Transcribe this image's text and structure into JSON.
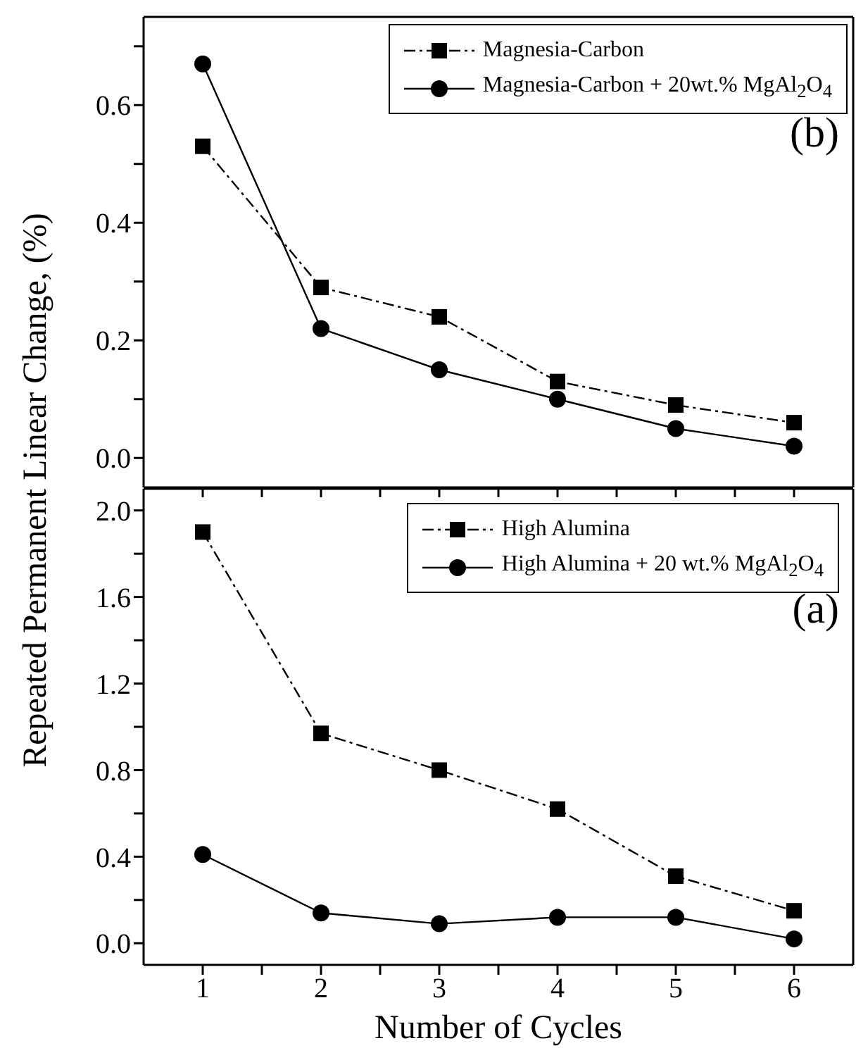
{
  "chart_data": [
    {
      "type": "line",
      "annotations": [
        "(b)"
      ],
      "x": [
        1,
        2,
        3,
        4,
        5,
        6
      ],
      "xlim": [
        0.5,
        6.5
      ],
      "xticks": [
        {
          "value": 1,
          "label": null
        },
        {
          "value": 1.5,
          "label": null
        },
        {
          "value": 2,
          "label": null
        },
        {
          "value": 2.5,
          "label": null
        },
        {
          "value": 3,
          "label": null
        },
        {
          "value": 3.5,
          "label": null
        },
        {
          "value": 4,
          "label": null
        },
        {
          "value": 4.5,
          "label": null
        },
        {
          "value": 5,
          "label": null
        },
        {
          "value": 5.5,
          "label": null
        },
        {
          "value": 6,
          "label": null
        }
      ],
      "ylim": [
        -0.05,
        0.75
      ],
      "yticks": [
        {
          "value": 0,
          "label": "0.0"
        },
        {
          "value": 0.1,
          "label": null
        },
        {
          "value": 0.2,
          "label": "0.2"
        },
        {
          "value": 0.3,
          "label": null
        },
        {
          "value": 0.4,
          "label": "0.4"
        },
        {
          "value": 0.5,
          "label": null
        },
        {
          "value": 0.6,
          "label": "0.6"
        },
        {
          "value": 0.7,
          "label": null
        }
      ],
      "tick_labels": "y",
      "legend": "top right",
      "grid": false,
      "series": [
        {
          "name": "Magnesia-Carbon",
          "color": "#000000",
          "marker": "square",
          "line_style": "dashed",
          "values": [
            0.53,
            0.29,
            0.24,
            0.13,
            0.09,
            0.06
          ]
        },
        {
          "name": "Magnesia-Carbon + 20wt.% MgAl$_{2}$O$_{4}$",
          "color": "#000000",
          "marker": "circle",
          "line_style": "solid",
          "values": [
            0.67,
            0.22,
            0.15,
            0.1,
            0.05,
            0.02
          ]
        }
      ]
    },
    {
      "type": "line",
      "annotations": [
        "(a)"
      ],
      "xlabel": "Number of Cycles",
      "ylabel": "Repeated Permanent Linear Change, (%)",
      "x": [
        1,
        2,
        3,
        4,
        5,
        6
      ],
      "xlim": [
        0.5,
        6.5
      ],
      "xticks": [
        1,
        {
          "value": 1.5,
          "label": null
        },
        2,
        {
          "value": 2.5,
          "label": null
        },
        3,
        {
          "value": 3.5,
          "label": null
        },
        4,
        {
          "value": 4.5,
          "label": null
        },
        5,
        {
          "value": 5.5,
          "label": null
        },
        6
      ],
      "ylim": [
        -0.1,
        2.1
      ],
      "yticks": [
        {
          "value": 0,
          "label": "0.0"
        },
        {
          "value": 0.2,
          "label": null
        },
        {
          "value": 0.4,
          "label": "0.4"
        },
        {
          "value": 0.6,
          "label": null
        },
        {
          "value": 0.8,
          "label": "0.8"
        },
        {
          "value": 1.0,
          "label": null
        },
        {
          "value": 1.2,
          "label": "1.2"
        },
        {
          "value": 1.4,
          "label": null
        },
        {
          "value": 1.6,
          "label": "1.6"
        },
        {
          "value": 1.8,
          "label": null
        },
        {
          "value": 2.0,
          "label": "2.0"
        }
      ],
      "legend": "top right",
      "grid": false,
      "series": [
        {
          "name": "High Alumina",
          "color": "#000000",
          "marker": "square",
          "line_style": "dashed",
          "values": [
            1.9,
            0.97,
            0.8,
            0.62,
            0.31,
            0.15
          ]
        },
        {
          "name": "High Alumina + 20 wt.% MgAl$_{2}$O$_{4}$",
          "color": "#000000",
          "marker": "circle",
          "line_style": "solid",
          "values": [
            0.41,
            0.14,
            0.09,
            0.12,
            0.12,
            0.02
          ]
        }
      ]
    }
  ]
}
